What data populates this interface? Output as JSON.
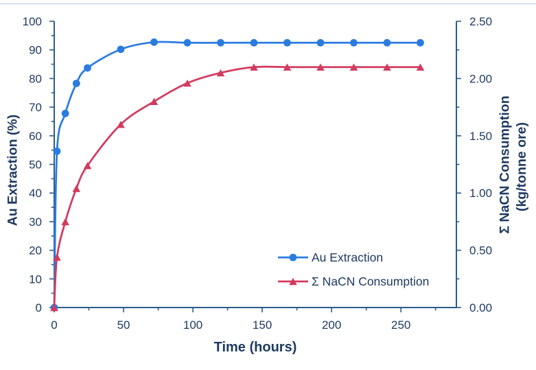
{
  "chart_data": {
    "type": "line",
    "x": [
      0,
      2,
      8,
      16,
      24,
      48,
      72,
      96,
      120,
      144,
      168,
      192,
      216,
      240,
      264
    ],
    "series": [
      {
        "name": "Au Extraction",
        "axis": "left",
        "marker": "circle",
        "color": "#2a7ce0",
        "values": [
          0,
          54.6,
          67.8,
          78.3,
          83.7,
          90.2,
          92.7,
          92.5,
          92.5,
          92.5,
          92.5,
          92.5,
          92.5,
          92.5,
          92.5
        ]
      },
      {
        "name": "Σ NaCN Consumption",
        "axis": "right",
        "marker": "triangle",
        "color": "#d23a5e",
        "values": [
          0,
          0.44,
          0.75,
          1.04,
          1.24,
          1.6,
          1.8,
          1.96,
          2.05,
          2.1,
          2.1,
          2.1,
          2.1,
          2.1,
          2.1
        ]
      }
    ],
    "x_axis": {
      "label": "Time (hours)",
      "min": 0,
      "max": 290,
      "major": 50,
      "minor": 25,
      "decimals": 0
    },
    "left_axis": {
      "label": "Au Extraction (%)",
      "min": 0,
      "max": 100,
      "major": 10,
      "minor": 5,
      "decimals": 0
    },
    "right_axis": {
      "label_line1": "Σ NaCN Consumption",
      "label_line2": "(kg/tonne ore)",
      "min": 0,
      "max": 2.5,
      "major": 0.5,
      "minor": 0.25,
      "decimals": 2
    },
    "legend": [
      {
        "label": "Au Extraction"
      },
      {
        "label": "Σ NaCN Consumption"
      }
    ],
    "layout": {
      "legend_position": "inside-right",
      "grid": "off"
    },
    "colors": {
      "axis_line": "#2d5b8c",
      "text": "#1f3a60",
      "series1": "#2a7ce0",
      "series2": "#d23a5e",
      "top_border": "#c9d6e8",
      "background": "#ffffff"
    }
  }
}
